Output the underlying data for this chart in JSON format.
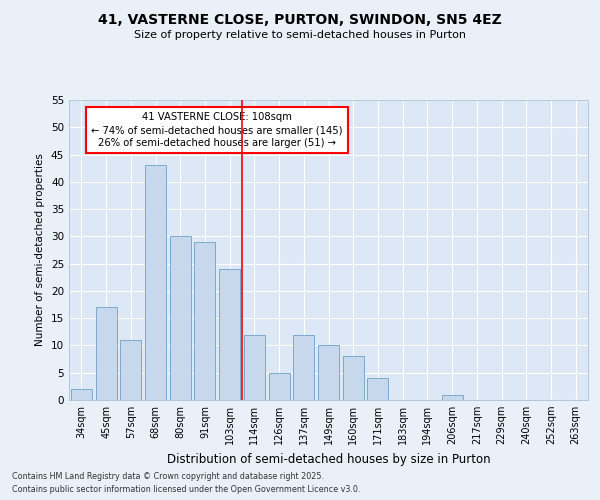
{
  "title1": "41, VASTERNE CLOSE, PURTON, SWINDON, SN5 4EZ",
  "title2": "Size of property relative to semi-detached houses in Purton",
  "xlabel": "Distribution of semi-detached houses by size in Purton",
  "ylabel": "Number of semi-detached properties",
  "categories": [
    "34sqm",
    "45sqm",
    "57sqm",
    "68sqm",
    "80sqm",
    "91sqm",
    "103sqm",
    "114sqm",
    "126sqm",
    "137sqm",
    "149sqm",
    "160sqm",
    "171sqm",
    "183sqm",
    "194sqm",
    "206sqm",
    "217sqm",
    "229sqm",
    "240sqm",
    "252sqm",
    "263sqm"
  ],
  "values": [
    2,
    17,
    11,
    43,
    30,
    29,
    24,
    12,
    5,
    12,
    10,
    8,
    4,
    0,
    0,
    1,
    0,
    0,
    0,
    0,
    0
  ],
  "bar_color": "#c8d8ec",
  "bar_edgecolor": "#7aaace",
  "redline_x": 6.5,
  "annotation_title": "41 VASTERNE CLOSE: 108sqm",
  "annotation_line1": "← 74% of semi-detached houses are smaller (145)",
  "annotation_line2": "26% of semi-detached houses are larger (51) →",
  "ylim": [
    0,
    55
  ],
  "yticks": [
    0,
    5,
    10,
    15,
    20,
    25,
    30,
    35,
    40,
    45,
    50,
    55
  ],
  "bg_color": "#eaf0f8",
  "plot_bg_color": "#dce8f5",
  "grid_color": "#ffffff",
  "footer1": "Contains HM Land Registry data © Crown copyright and database right 2025.",
  "footer2": "Contains public sector information licensed under the Open Government Licence v3.0."
}
